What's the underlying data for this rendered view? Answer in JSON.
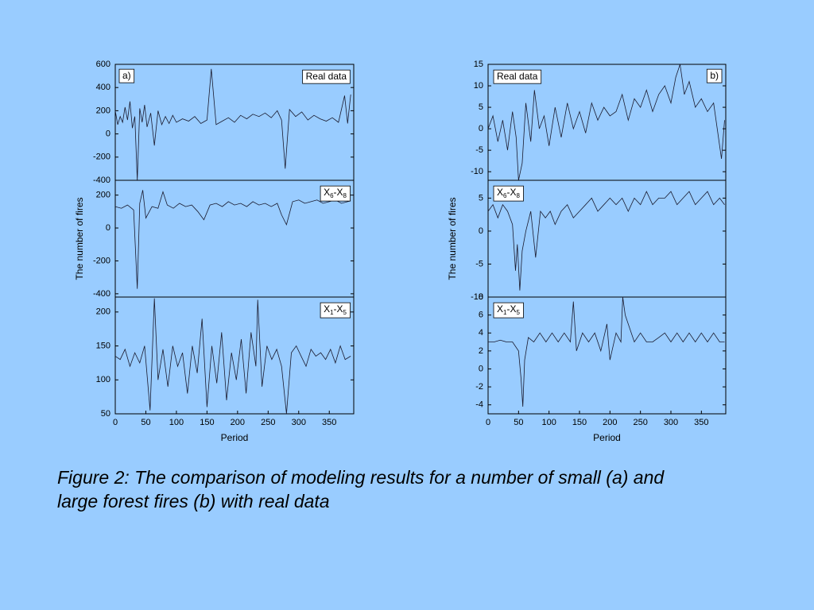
{
  "chart_data": [
    {
      "type": "line",
      "annotation": "a)",
      "legend_position": "top-right",
      "xlim": [
        0,
        390
      ],
      "ylim": [
        -400,
        600
      ],
      "yticks": [
        -400,
        -200,
        0,
        200,
        400,
        600
      ],
      "x": [
        0,
        4,
        8,
        12,
        16,
        20,
        24,
        28,
        32,
        36,
        40,
        44,
        48,
        52,
        58,
        64,
        70,
        76,
        82,
        88,
        94,
        100,
        110,
        120,
        130,
        140,
        150,
        157,
        165,
        175,
        185,
        195,
        205,
        215,
        225,
        235,
        245,
        255,
        265,
        272,
        278,
        285,
        295,
        305,
        315,
        325,
        335,
        345,
        355,
        365,
        375,
        380,
        385
      ],
      "series": [
        {
          "name": "Real data",
          "color": "#1a1a2e",
          "values": [
            200,
            80,
            150,
            100,
            230,
            120,
            280,
            50,
            150,
            -400,
            220,
            100,
            250,
            60,
            180,
            -100,
            200,
            80,
            150,
            90,
            160,
            100,
            130,
            110,
            150,
            90,
            120,
            560,
            80,
            110,
            140,
            100,
            160,
            130,
            170,
            150,
            180,
            140,
            200,
            120,
            -300,
            210,
            150,
            190,
            120,
            160,
            130,
            110,
            140,
            100,
            330,
            90,
            340
          ]
        }
      ]
    },
    {
      "type": "line",
      "legend_position": "top-right",
      "y_label": "The number of fires",
      "xlim": [
        0,
        390
      ],
      "ylim": [
        -420,
        290
      ],
      "yticks": [
        -400,
        -200,
        0,
        200
      ],
      "x": [
        0,
        10,
        20,
        30,
        36,
        40,
        45,
        50,
        60,
        70,
        78,
        85,
        95,
        105,
        115,
        125,
        135,
        145,
        155,
        165,
        175,
        185,
        195,
        205,
        215,
        225,
        235,
        245,
        255,
        265,
        272,
        280,
        290,
        300,
        310,
        320,
        330,
        340,
        350,
        360,
        370,
        380,
        385
      ],
      "series": [
        {
          "name": "X6-X8",
          "color": "#1a1a2e",
          "values": [
            130,
            120,
            140,
            110,
            -370,
            150,
            230,
            60,
            130,
            120,
            220,
            140,
            120,
            150,
            130,
            140,
            100,
            50,
            140,
            150,
            130,
            160,
            140,
            150,
            130,
            160,
            140,
            150,
            130,
            150,
            80,
            20,
            160,
            170,
            150,
            160,
            170,
            150,
            160,
            170,
            150,
            160,
            165
          ]
        }
      ]
    },
    {
      "type": "line",
      "legend_position": "top-right",
      "x_label": "Period",
      "xlim": [
        0,
        390
      ],
      "ylim": [
        50,
        222
      ],
      "yticks": [
        50,
        100,
        150,
        200
      ],
      "xticks": [
        0,
        50,
        100,
        150,
        200,
        250,
        300,
        350
      ],
      "x": [
        0,
        8,
        16,
        24,
        32,
        40,
        48,
        57,
        64,
        70,
        78,
        86,
        94,
        102,
        110,
        118,
        126,
        134,
        142,
        150,
        158,
        166,
        174,
        182,
        190,
        198,
        206,
        214,
        222,
        230,
        233,
        240,
        248,
        256,
        264,
        272,
        280,
        288,
        296,
        304,
        312,
        320,
        328,
        336,
        344,
        352,
        360,
        368,
        376,
        385
      ],
      "series": [
        {
          "name": "X1-X5",
          "color": "#1a1a2e",
          "values": [
            135,
            130,
            145,
            120,
            140,
            125,
            150,
            55,
            220,
            100,
            145,
            90,
            150,
            120,
            140,
            80,
            150,
            110,
            190,
            60,
            150,
            95,
            170,
            70,
            140,
            100,
            160,
            80,
            170,
            120,
            218,
            90,
            150,
            130,
            145,
            120,
            50,
            140,
            150,
            135,
            120,
            145,
            135,
            140,
            130,
            145,
            125,
            150,
            130,
            135
          ]
        }
      ]
    },
    {
      "type": "line",
      "annotation": "b)",
      "legend_position": "top-left",
      "xlim": [
        0,
        390
      ],
      "ylim": [
        -12,
        15
      ],
      "yticks": [
        -10,
        -5,
        0,
        5,
        10,
        15
      ],
      "x": [
        0,
        8,
        16,
        24,
        32,
        40,
        46,
        50,
        56,
        62,
        70,
        76,
        84,
        92,
        100,
        110,
        120,
        130,
        140,
        150,
        160,
        170,
        180,
        190,
        200,
        210,
        220,
        230,
        240,
        250,
        260,
        270,
        280,
        290,
        300,
        308,
        315,
        322,
        330,
        340,
        350,
        360,
        370,
        378,
        383,
        388
      ],
      "series": [
        {
          "name": "Real data",
          "color": "#1a1a2e",
          "values": [
            0,
            3,
            -3,
            2,
            -5,
            4,
            -2,
            -12,
            -8,
            6,
            -3,
            9,
            0,
            3,
            -4,
            5,
            -2,
            6,
            0,
            4,
            -1,
            6,
            2,
            5,
            3,
            4,
            8,
            2,
            7,
            5,
            9,
            4,
            8,
            10,
            6,
            12,
            15,
            8,
            11,
            5,
            7,
            4,
            6,
            -2,
            -7,
            2
          ]
        }
      ]
    },
    {
      "type": "line",
      "legend_position": "top-left",
      "y_label": "The number of fires",
      "xlim": [
        0,
        390
      ],
      "ylim": [
        -10,
        7.7
      ],
      "yticks": [
        -10,
        -5,
        0,
        5
      ],
      "x": [
        0,
        8,
        16,
        24,
        32,
        40,
        45,
        48,
        52,
        56,
        62,
        70,
        78,
        86,
        94,
        102,
        110,
        120,
        130,
        140,
        150,
        160,
        170,
        180,
        190,
        200,
        210,
        220,
        230,
        240,
        250,
        260,
        270,
        280,
        290,
        300,
        310,
        320,
        330,
        340,
        350,
        360,
        370,
        380,
        388
      ],
      "series": [
        {
          "name": "X6-X8",
          "color": "#1a1a2e",
          "values": [
            3,
            4,
            2,
            4,
            3,
            1,
            -6,
            -2,
            -9,
            -3,
            0,
            3,
            -4,
            3,
            2,
            3,
            1,
            3,
            4,
            2,
            3,
            4,
            5,
            3,
            4,
            5,
            4,
            5,
            3,
            5,
            4,
            6,
            4,
            5,
            5,
            6,
            4,
            5,
            6,
            4,
            5,
            6,
            4,
            5,
            4
          ]
        }
      ]
    },
    {
      "type": "line",
      "legend_position": "top-left",
      "x_label": "Period",
      "xlim": [
        0,
        390
      ],
      "ylim": [
        -5,
        8
      ],
      "yticks": [
        -4,
        -2,
        0,
        2,
        4,
        6,
        8
      ],
      "xticks": [
        0,
        50,
        100,
        150,
        200,
        250,
        300,
        350
      ],
      "x": [
        0,
        10,
        20,
        30,
        40,
        50,
        54,
        57,
        60,
        66,
        75,
        85,
        95,
        105,
        115,
        125,
        135,
        140,
        145,
        155,
        165,
        175,
        185,
        195,
        200,
        210,
        218,
        221,
        225,
        230,
        240,
        250,
        260,
        270,
        280,
        290,
        300,
        310,
        320,
        330,
        340,
        350,
        360,
        370,
        380,
        388
      ],
      "series": [
        {
          "name": "X1-X5",
          "color": "#1a1a2e",
          "values": [
            3,
            3,
            3.2,
            3,
            3,
            2,
            -1,
            -4.2,
            1,
            3.5,
            3,
            4,
            3,
            4,
            3,
            4,
            3,
            7.5,
            2,
            4,
            3,
            4,
            2,
            5,
            1,
            4,
            3,
            8,
            6,
            5,
            3,
            4,
            3,
            3,
            3.5,
            4,
            3,
            4,
            3,
            4,
            3,
            4,
            3,
            4,
            3,
            3
          ]
        }
      ]
    }
  ],
  "caption": [
    "Figure 2: The comparison of modeling results for a number of small (a) and",
    "large forest fires (b) with real data"
  ]
}
